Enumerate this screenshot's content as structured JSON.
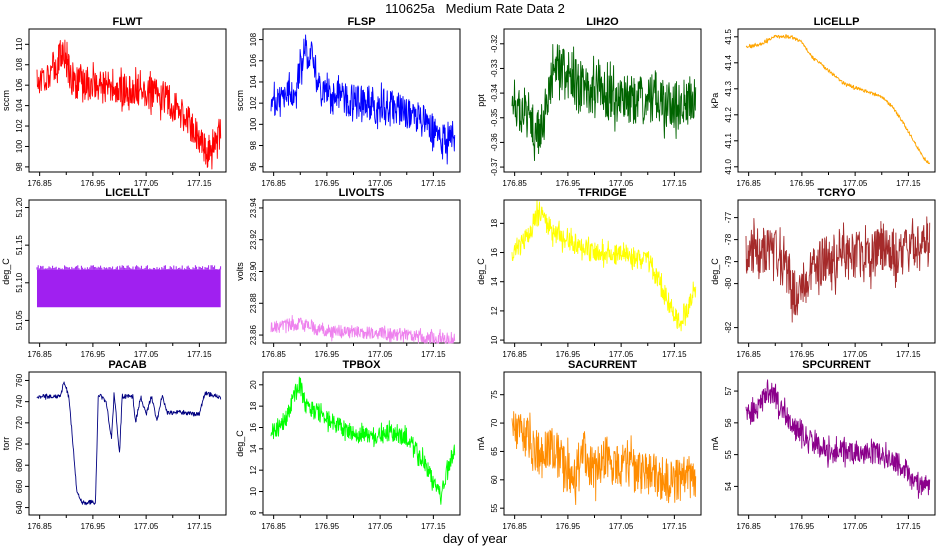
{
  "figure": {
    "title": "110625a   Medium Rate Data 2",
    "xlabel": "day of year"
  },
  "chart_data": [
    {
      "type": "line",
      "title": "FLWT",
      "ylabel": "sccm",
      "color": "#ff0000",
      "xlim": [
        176.83,
        177.2
      ],
      "ylim": [
        97.5,
        111.5
      ],
      "yticks": [
        "98",
        "100",
        "102",
        "104",
        "106",
        "108",
        "110"
      ],
      "xticks": [
        "176.85",
        "176.95",
        "177.05",
        "177.15"
      ],
      "x": [
        176.845,
        176.87,
        176.88,
        176.895,
        176.91,
        176.93,
        176.95,
        176.97,
        177.0,
        177.03,
        177.06,
        177.09,
        177.11,
        177.13,
        177.15,
        177.165,
        177.18,
        177.19
      ],
      "values": [
        106.5,
        107.2,
        108,
        109.5,
        106.5,
        106,
        106.2,
        105.8,
        105.5,
        105.5,
        105.2,
        104.5,
        103.5,
        102.5,
        100.5,
        99.5,
        100.5,
        101.5
      ],
      "noise": 3.2
    },
    {
      "type": "line",
      "title": "FLSP",
      "ylabel": "sccm",
      "color": "#0000ff",
      "xlim": [
        176.83,
        177.2
      ],
      "ylim": [
        95.5,
        109
      ],
      "yticks": [
        "96",
        "98",
        "100",
        "102",
        "104",
        "106",
        "108"
      ],
      "xticks": [
        "176.85",
        "176.95",
        "177.05",
        "177.15"
      ],
      "x": [
        176.845,
        176.87,
        176.89,
        176.905,
        176.915,
        176.925,
        176.935,
        176.95,
        176.98,
        177.0,
        177.05,
        177.08,
        177.11,
        177.14,
        177.165,
        177.19
      ],
      "values": [
        102.5,
        102.8,
        103.5,
        105.5,
        107,
        106.5,
        103.5,
        102.5,
        102.5,
        102.2,
        101.8,
        101.5,
        101,
        100,
        98.5,
        98.8
      ],
      "noise": 3.2
    },
    {
      "type": "line",
      "title": "LIH2O",
      "ylabel": "ppt",
      "color": "#006400",
      "xlim": [
        176.83,
        177.2
      ],
      "ylim": [
        -0.372,
        -0.314
      ],
      "yticks": [
        "-0.37",
        "-0.36",
        "-0.35",
        "-0.34",
        "-0.33",
        "-0.32"
      ],
      "xticks": [
        "176.85",
        "176.95",
        "177.05",
        "177.15"
      ],
      "x": [
        176.845,
        176.87,
        176.885,
        176.9,
        176.915,
        176.93,
        176.95,
        176.98,
        177.0,
        177.05,
        177.1,
        177.15,
        177.19
      ],
      "values": [
        -0.343,
        -0.347,
        -0.352,
        -0.36,
        -0.34,
        -0.327,
        -0.333,
        -0.338,
        -0.34,
        -0.342,
        -0.343,
        -0.344,
        -0.343
      ],
      "noise": 0.02
    },
    {
      "type": "line",
      "title": "LICELLP",
      "ylabel": "kPa",
      "color": "#ffa500",
      "xlim": [
        176.83,
        177.2
      ],
      "ylim": [
        40.98,
        41.53
      ],
      "yticks": [
        "41.0",
        "41.1",
        "41.2",
        "41.3",
        "41.4",
        "41.5"
      ],
      "xticks": [
        "176.85",
        "176.95",
        "177.05",
        "177.15"
      ],
      "x": [
        176.845,
        176.87,
        176.9,
        176.93,
        176.95,
        176.97,
        177.0,
        177.03,
        177.07,
        177.1,
        177.12,
        177.14,
        177.16,
        177.18,
        177.19
      ],
      "values": [
        41.46,
        41.47,
        41.5,
        41.5,
        41.48,
        41.42,
        41.37,
        41.32,
        41.29,
        41.27,
        41.23,
        41.17,
        41.1,
        41.03,
        41.01
      ],
      "noise": 0.012
    },
    {
      "type": "area",
      "title": "LICELLT",
      "ylabel": "deg_C",
      "color": "#a020f0",
      "xlim": [
        176.83,
        177.2
      ],
      "ylim": [
        51.02,
        51.21
      ],
      "yticks": [
        "51.05",
        "51.10",
        "51.15",
        "51.20"
      ],
      "xticks": [
        "176.85",
        "176.95",
        "177.05",
        "177.15"
      ],
      "x": [
        176.845,
        177.19
      ],
      "values": [
        51.09,
        51.09
      ],
      "noise": 0.05
    },
    {
      "type": "line",
      "title": "LIVOLTS",
      "ylabel": "volts",
      "color": "#ee82ee",
      "xlim": [
        176.83,
        177.2
      ],
      "ylim": [
        23.855,
        23.945
      ],
      "yticks": [
        "23.86",
        "23.88",
        "23.90",
        "23.92",
        "23.94"
      ],
      "xticks": [
        "176.85",
        "176.95",
        "177.05",
        "177.15"
      ],
      "x": [
        176.845,
        176.87,
        176.9,
        176.93,
        176.96,
        177.0,
        177.05,
        177.1,
        177.14,
        177.19
      ],
      "values": [
        23.864,
        23.866,
        23.867,
        23.864,
        23.862,
        23.862,
        23.861,
        23.86,
        23.858,
        23.857
      ],
      "noise": 0.008
    },
    {
      "type": "line",
      "title": "TFRIDGE",
      "ylabel": "deg_C",
      "color": "#ffff00",
      "xlim": [
        176.83,
        177.2
      ],
      "ylim": [
        9.8,
        19.6
      ],
      "yticks": [
        "10",
        "12",
        "14",
        "16",
        "18"
      ],
      "xticks": [
        "176.85",
        "176.95",
        "177.05",
        "177.15"
      ],
      "x": [
        176.845,
        176.86,
        176.875,
        176.89,
        176.9,
        176.92,
        176.94,
        176.97,
        177.0,
        177.05,
        177.1,
        177.12,
        177.14,
        177.16,
        177.175,
        177.19
      ],
      "values": [
        16,
        16.5,
        17,
        18.5,
        18.5,
        17.5,
        17,
        16.5,
        16,
        15.8,
        15.5,
        14,
        12.5,
        11,
        12,
        13.5
      ],
      "noise": 1.4
    },
    {
      "type": "line",
      "title": "TCRYO",
      "ylabel": "deg_C",
      "color": "#a52a2a",
      "xlim": [
        176.83,
        177.2
      ],
      "ylim": [
        -82.7,
        -76.2
      ],
      "yticks": [
        "-82",
        "-80",
        "-79",
        "-78",
        "-77"
      ],
      "xticks": [
        "176.85",
        "176.95",
        "177.05",
        "177.15"
      ],
      "x": [
        176.845,
        176.9,
        176.92,
        176.935,
        176.95,
        176.97,
        177.0,
        177.05,
        177.1,
        177.15,
        177.19
      ],
      "values": [
        -78.5,
        -78.6,
        -79.5,
        -80.5,
        -80.2,
        -79.3,
        -78.9,
        -78.7,
        -78.6,
        -78.5,
        -78.3
      ],
      "noise": 2.2
    },
    {
      "type": "line",
      "title": "PACAB",
      "ylabel": "torr",
      "color": "#000080",
      "xlim": [
        176.83,
        177.2
      ],
      "ylim": [
        633,
        768
      ],
      "yticks": [
        "640",
        "660",
        "680",
        "700",
        "720",
        "740",
        "760"
      ],
      "xticks": [
        "176.85",
        "176.95",
        "177.05",
        "177.15"
      ],
      "x": [
        176.845,
        176.89,
        176.895,
        176.905,
        176.92,
        176.93,
        176.955,
        176.96,
        176.965,
        176.975,
        176.985,
        176.99,
        177.0,
        177.005,
        177.015,
        177.025,
        177.03,
        177.04,
        177.05,
        177.06,
        177.07,
        177.08,
        177.09,
        177.12,
        177.14,
        177.15,
        177.16,
        177.19
      ],
      "values": [
        745,
        745,
        760,
        745,
        655,
        645,
        645,
        745,
        745,
        740,
        705,
        748,
        690,
        745,
        745,
        745,
        720,
        745,
        728,
        745,
        722,
        745,
        730,
        730,
        728,
        728,
        748,
        744
      ],
      "noise": 4
    },
    {
      "type": "line",
      "title": "TPBOX",
      "ylabel": "deg_C",
      "color": "#00ff00",
      "xlim": [
        176.83,
        177.2
      ],
      "ylim": [
        7.8,
        21.2
      ],
      "yticks": [
        "8",
        "10",
        "12",
        "14",
        "16",
        "18",
        "20"
      ],
      "xticks": [
        "176.85",
        "176.95",
        "177.05",
        "177.15"
      ],
      "x": [
        176.845,
        176.86,
        176.875,
        176.89,
        176.9,
        176.91,
        176.93,
        176.96,
        177.0,
        177.03,
        177.07,
        177.1,
        177.13,
        177.15,
        177.165,
        177.175,
        177.19
      ],
      "values": [
        15.5,
        16,
        17,
        19,
        20,
        18,
        17.5,
        16.5,
        15.5,
        15,
        15.5,
        15,
        13,
        11,
        9.5,
        12,
        14
      ],
      "noise": 1.6
    },
    {
      "type": "line",
      "title": "SACURRENT",
      "ylabel": "mA",
      "color": "#ff8c00",
      "xlim": [
        176.83,
        177.2
      ],
      "ylim": [
        53.8,
        79
      ],
      "yticks": [
        "55",
        "60",
        "65",
        "70",
        "75"
      ],
      "xticks": [
        "176.85",
        "176.95",
        "177.05",
        "177.15"
      ],
      "x": [
        176.845,
        176.86,
        176.88,
        176.9,
        176.92,
        176.94,
        176.96,
        176.98,
        177.0,
        177.02,
        177.04,
        177.06,
        177.08,
        177.1,
        177.13,
        177.16,
        177.19
      ],
      "values": [
        69,
        68,
        66,
        64,
        66,
        63,
        60,
        65,
        61,
        64,
        62,
        63,
        61,
        61,
        60,
        60,
        61
      ],
      "noise": 8
    },
    {
      "type": "line",
      "title": "SPCURRENT",
      "ylabel": "mA",
      "color": "#8b008b",
      "xlim": [
        176.83,
        177.2
      ],
      "ylim": [
        53.1,
        57.6
      ],
      "yticks": [
        "54",
        "55",
        "56",
        "57"
      ],
      "xticks": [
        "176.85",
        "176.95",
        "177.05",
        "177.15"
      ],
      "x": [
        176.845,
        176.87,
        176.885,
        176.9,
        176.93,
        176.96,
        177.0,
        177.05,
        177.1,
        177.12,
        177.14,
        177.16,
        177.18,
        177.19
      ],
      "values": [
        56.2,
        56.5,
        57,
        56.8,
        56,
        55.5,
        55.1,
        55.1,
        55,
        54.8,
        54.6,
        54.2,
        54,
        54.1
      ],
      "noise": 0.7
    }
  ]
}
